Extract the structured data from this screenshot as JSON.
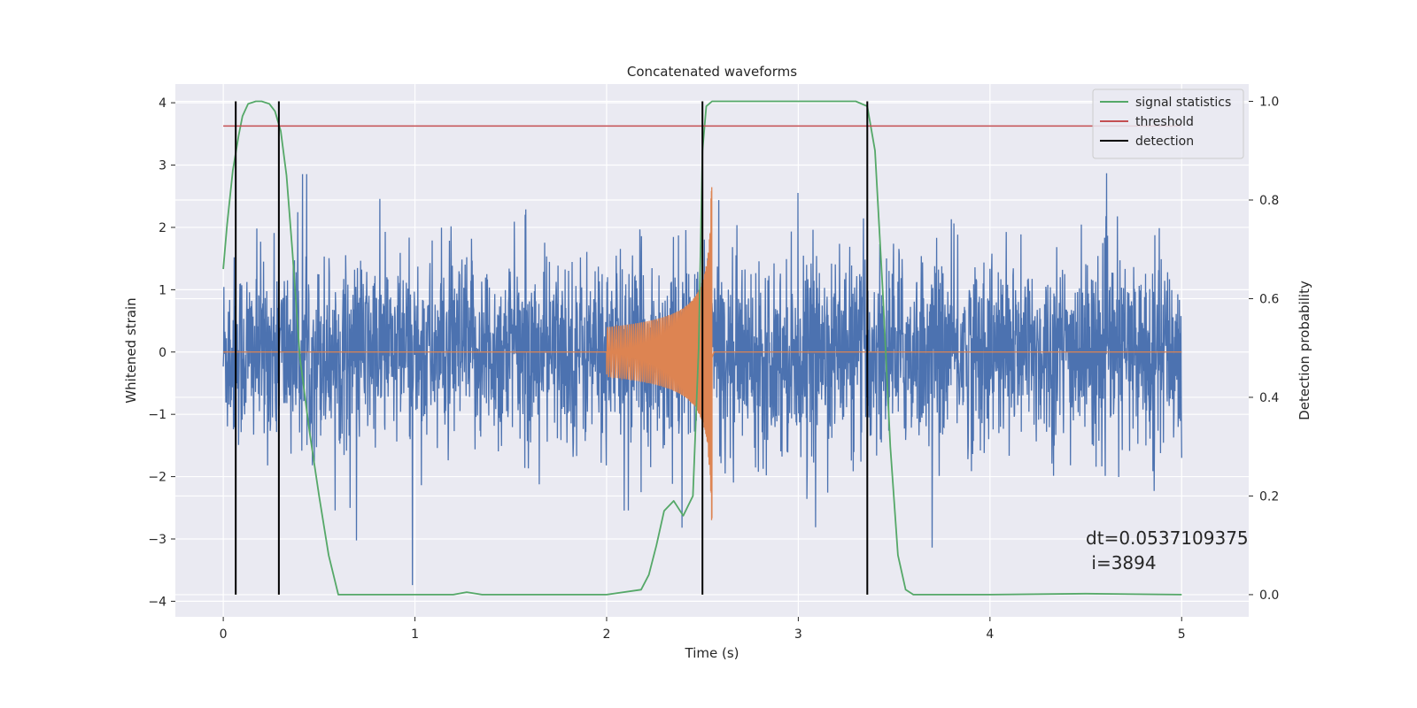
{
  "chart_data": {
    "type": "line",
    "title": "Concatenated waveforms",
    "xlabel": "Time (s)",
    "ylabel": "Whitened strain",
    "y2label": "Detection probability",
    "xlim": [
      -0.25,
      5.35
    ],
    "ylim": [
      -4.25,
      4.3
    ],
    "y2lim": [
      -0.045,
      1.035
    ],
    "grid": true,
    "background": "#eaeaf2",
    "legend_position": "top-right",
    "x_ticks": [
      0,
      1,
      2,
      3,
      4,
      5
    ],
    "y_ticks": [
      -4,
      -3,
      -2,
      -1,
      0,
      1,
      2,
      3,
      4
    ],
    "y2_ticks": [
      0.0,
      0.2,
      0.4,
      0.6,
      0.8,
      1.0
    ],
    "y_tick_labels": [
      "−4",
      "−3",
      "−2",
      "−1",
      "0",
      "1",
      "2",
      "3",
      "4"
    ],
    "y2_tick_labels": [
      "0.0",
      "0.2",
      "0.4",
      "0.6",
      "0.8",
      "1.0"
    ],
    "series": [
      {
        "name": "",
        "axis": "left",
        "color": "#4c72b0",
        "description_kind": "noise",
        "x_range": [
          0,
          5
        ],
        "amplitude_std": 0.75,
        "peak_abs": 3.9
      },
      {
        "name": "",
        "axis": "left",
        "color": "#dd8452",
        "description_kind": "chirp",
        "x_range": [
          2.0,
          2.56
        ],
        "start_amplitude": 0.4,
        "peak_time": 2.55,
        "peak_value": 2.7,
        "baseline": 0
      },
      {
        "name": "signal statistics",
        "axis": "right",
        "color": "#55a868",
        "x": [
          0,
          0.02,
          0.05,
          0.08,
          0.1,
          0.13,
          0.17,
          0.2,
          0.24,
          0.27,
          0.3,
          0.33,
          0.36,
          0.4,
          0.45,
          0.5,
          0.55,
          0.6,
          1.0,
          1.2,
          1.27,
          1.35,
          1.6,
          2.0,
          2.18,
          2.22,
          2.26,
          2.3,
          2.35,
          2.4,
          2.45,
          2.48,
          2.5,
          2.52,
          2.55,
          2.6,
          3.0,
          3.3,
          3.36,
          3.4,
          3.44,
          3.48,
          3.52,
          3.56,
          3.6,
          4.0,
          4.5,
          5.0
        ],
        "y": [
          0.66,
          0.75,
          0.86,
          0.93,
          0.97,
          0.995,
          1.0,
          1.0,
          0.995,
          0.98,
          0.94,
          0.85,
          0.7,
          0.48,
          0.33,
          0.2,
          0.08,
          0.0,
          0.0,
          0.0,
          0.005,
          0.0,
          0.0,
          0.0,
          0.01,
          0.04,
          0.1,
          0.17,
          0.19,
          0.16,
          0.2,
          0.5,
          0.9,
          0.99,
          1.0,
          1.0,
          1.0,
          1.0,
          0.99,
          0.9,
          0.62,
          0.3,
          0.08,
          0.01,
          0.0,
          0.0,
          0.002,
          0.0
        ]
      },
      {
        "name": "threshold",
        "axis": "right",
        "color": "#c44e52",
        "x": [
          0,
          5
        ],
        "y": [
          0.95,
          0.95
        ]
      },
      {
        "name": "detection",
        "axis": "right",
        "color": "#000000",
        "vlines": [
          0.065,
          0.29,
          2.5,
          3.36
        ],
        "ymin": 0.0,
        "ymax": 1.0
      }
    ],
    "annotation": {
      "line1": "dt=0.0537109375",
      "line2": " i=3894",
      "x": 4.5,
      "y": -3.0
    }
  }
}
